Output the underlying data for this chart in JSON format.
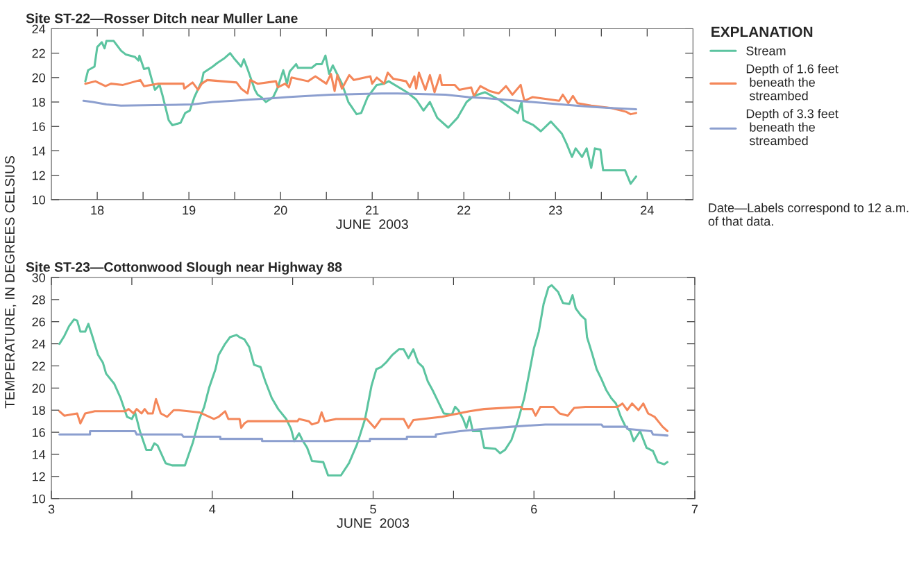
{
  "chart_data": [
    {
      "type": "line",
      "title": "Site ST-22—Rosser Ditch near Muller Lane",
      "xlabel": "JUNE  2003",
      "ylabel": "TEMPERATURE, IN DEGREES CELSIUS",
      "legend_title": "EXPLANATION",
      "legend": "right",
      "grid": false,
      "line_style": "solid",
      "xlim": [
        17.5,
        24.5
      ],
      "ylim": [
        10,
        24
      ],
      "xticks": [
        18,
        {
          "value": 18.5,
          "label": null
        },
        19,
        {
          "value": 19.5,
          "label": null
        },
        20,
        {
          "value": 20.5,
          "label": null
        },
        21,
        {
          "value": 21.5,
          "label": null
        },
        22,
        {
          "value": 22.5,
          "label": null
        },
        23,
        {
          "value": 23.5,
          "label": null
        },
        24
      ],
      "yticks": [
        10,
        12,
        14,
        16,
        18,
        20,
        22,
        24
      ],
      "annotations": [
        "Date—Labels correspond to 12 a.m. of that data."
      ],
      "series": [
        {
          "name": "Stream",
          "color": "#5cc4a0",
          "x": [
            17.87,
            17.9,
            17.97,
            18.0,
            18.05,
            18.08,
            18.1,
            18.18,
            18.26,
            18.31,
            18.41,
            18.45,
            18.46,
            18.51,
            18.56,
            18.6,
            18.63,
            18.68,
            18.71,
            18.78,
            18.82,
            18.91,
            18.96,
            19.01,
            19.06,
            19.14,
            19.16,
            19.26,
            19.31,
            19.39,
            19.45,
            19.49,
            19.57,
            19.6,
            19.64,
            19.72,
            19.75,
            19.79,
            19.84,
            19.92,
            19.97,
            20.03,
            20.07,
            20.1,
            20.17,
            20.19,
            20.34,
            20.39,
            20.45,
            20.49,
            20.53,
            20.57,
            20.67,
            20.74,
            20.83,
            20.88,
            20.95,
            21.05,
            21.13,
            21.18,
            21.38,
            21.48,
            21.56,
            21.63,
            21.71,
            21.83,
            21.93,
            22.03,
            22.11,
            22.23,
            22.38,
            22.49,
            22.59,
            22.63,
            22.65,
            22.76,
            22.84,
            22.95,
            23.07,
            23.12,
            23.18,
            23.22,
            23.29,
            23.34,
            23.39,
            23.43,
            23.49,
            23.52,
            23.76,
            23.82,
            23.88
          ],
          "values": [
            19.7,
            20.6,
            20.9,
            22.5,
            22.9,
            22.4,
            23.0,
            23.0,
            22.2,
            21.9,
            21.7,
            21.4,
            21.8,
            20.7,
            20.8,
            19.7,
            19.0,
            19.4,
            18.6,
            16.5,
            16.1,
            16.3,
            17.1,
            17.3,
            18.4,
            19.7,
            20.4,
            20.9,
            21.2,
            21.6,
            22.0,
            21.6,
            20.9,
            21.5,
            20.7,
            19.0,
            18.6,
            18.4,
            18.0,
            18.4,
            19.2,
            20.6,
            19.5,
            20.5,
            21.1,
            20.8,
            20.8,
            21.1,
            21.1,
            21.8,
            20.3,
            21.0,
            19.5,
            18.0,
            17.0,
            17.1,
            18.4,
            19.4,
            19.5,
            19.7,
            18.8,
            18.2,
            17.3,
            18.0,
            16.7,
            15.9,
            16.7,
            18.0,
            18.5,
            18.8,
            18.2,
            17.6,
            17.1,
            18.0,
            16.5,
            16.1,
            15.6,
            16.4,
            15.4,
            14.6,
            13.5,
            14.2,
            13.5,
            14.2,
            12.6,
            14.2,
            14.1,
            12.4,
            12.4,
            11.3,
            11.9
          ]
        },
        {
          "name": "Depth of 1.6 feet\n beneath the\n streambed",
          "color": "#f4875a",
          "x": [
            17.87,
            17.98,
            18.09,
            18.15,
            18.28,
            18.47,
            18.51,
            18.66,
            18.94,
            18.95,
            19.04,
            19.1,
            19.14,
            19.2,
            19.52,
            19.57,
            19.64,
            19.67,
            19.75,
            19.95,
            19.97,
            20.05,
            20.09,
            20.12,
            20.3,
            20.38,
            20.5,
            20.55,
            20.59,
            20.62,
            20.67,
            20.75,
            20.8,
            20.98,
            21.0,
            21.05,
            21.13,
            21.17,
            21.23,
            21.37,
            21.41,
            21.46,
            21.48,
            21.51,
            21.58,
            21.63,
            21.68,
            21.74,
            21.76,
            21.9,
            21.95,
            22.08,
            22.11,
            22.18,
            22.28,
            22.38,
            22.46,
            22.53,
            22.62,
            22.66,
            22.75,
            23.04,
            23.08,
            23.14,
            23.19,
            23.24,
            23.39,
            23.61,
            23.77,
            23.82,
            23.88
          ],
          "values": [
            19.5,
            19.7,
            19.3,
            19.5,
            19.4,
            19.8,
            19.3,
            19.5,
            19.5,
            19.1,
            19.6,
            19.0,
            19.5,
            19.8,
            19.6,
            19.1,
            18.7,
            19.8,
            19.5,
            19.7,
            19.2,
            19.5,
            19.2,
            20.0,
            19.7,
            20.1,
            19.5,
            20.3,
            18.9,
            20.2,
            19.1,
            20.2,
            19.8,
            20.1,
            19.5,
            20.0,
            19.5,
            20.4,
            19.9,
            19.7,
            19.2,
            20.1,
            19.1,
            20.4,
            19.0,
            20.2,
            18.8,
            20.2,
            19.4,
            19.4,
            19.0,
            19.2,
            18.5,
            19.3,
            18.9,
            18.7,
            19.3,
            18.6,
            19.4,
            18.1,
            18.4,
            18.1,
            18.6,
            17.9,
            18.5,
            17.9,
            17.7,
            17.5,
            17.2,
            17.0,
            17.1
          ]
        },
        {
          "name": "Depth of 3.3 feet\n beneath the\n streambed",
          "color": "#8c9fcf",
          "x": [
            17.85,
            17.95,
            18.1,
            18.26,
            19.04,
            19.26,
            19.49,
            19.67,
            19.9,
            20.07,
            20.3,
            20.55,
            21.1,
            21.28,
            21.8,
            22.05,
            22.26,
            22.43,
            22.74,
            23.06,
            23.39,
            23.61,
            23.88
          ],
          "values": [
            18.1,
            18.0,
            17.8,
            17.7,
            17.8,
            18.0,
            18.1,
            18.2,
            18.3,
            18.4,
            18.5,
            18.6,
            18.7,
            18.7,
            18.6,
            18.4,
            18.3,
            18.2,
            18.0,
            17.8,
            17.6,
            17.5,
            17.4
          ]
        }
      ]
    },
    {
      "type": "line",
      "title": "Site ST-23—Cottonwood Slough near Highway 88",
      "xlabel": "JUNE  2003",
      "grid": false,
      "line_style": "solid",
      "xlim": [
        3,
        7
      ],
      "ylim": [
        10,
        30
      ],
      "xticks": [
        3,
        {
          "value": 3.5,
          "label": null
        },
        4,
        {
          "value": 4.5,
          "label": null
        },
        5,
        {
          "value": 5.5,
          "label": null
        },
        6,
        {
          "value": 6.5,
          "label": null
        },
        7
      ],
      "yticks": [
        10,
        12,
        14,
        16,
        18,
        20,
        22,
        24,
        26,
        28,
        30
      ],
      "series": [
        {
          "color": "#5cc4a0",
          "x": [
            3.05,
            3.08,
            3.11,
            3.14,
            3.16,
            3.18,
            3.21,
            3.23,
            3.25,
            3.29,
            3.32,
            3.34,
            3.39,
            3.43,
            3.47,
            3.5,
            3.52,
            3.55,
            3.59,
            3.62,
            3.64,
            3.66,
            3.71,
            3.75,
            3.83,
            3.88,
            3.92,
            3.95,
            3.98,
            4.02,
            4.04,
            4.08,
            4.11,
            4.15,
            4.17,
            4.2,
            4.23,
            4.26,
            4.3,
            4.33,
            4.37,
            4.41,
            4.46,
            4.49,
            4.51,
            4.54,
            4.56,
            4.59,
            4.62,
            4.69,
            4.72,
            4.8,
            4.85,
            4.9,
            4.95,
            4.99,
            5.02,
            5.05,
            5.08,
            5.12,
            5.16,
            5.19,
            5.22,
            5.25,
            5.28,
            5.31,
            5.34,
            5.37,
            5.4,
            5.44,
            5.49,
            5.51,
            5.53,
            5.56,
            5.58,
            5.6,
            5.62,
            5.67,
            5.69,
            5.76,
            5.79,
            5.82,
            5.86,
            5.9,
            5.94,
            5.97,
            6.0,
            6.03,
            6.06,
            6.09,
            6.11,
            6.15,
            6.18,
            6.22,
            6.24,
            6.26,
            6.29,
            6.32,
            6.33,
            6.36,
            6.39,
            6.42,
            6.45,
            6.48,
            6.51,
            6.54,
            6.57,
            6.6,
            6.62,
            6.66,
            6.7,
            6.74,
            6.77,
            6.81,
            6.83
          ],
          "values": [
            24.0,
            24.7,
            25.6,
            26.2,
            26.1,
            25.1,
            25.1,
            25.8,
            24.9,
            23.0,
            22.3,
            21.3,
            20.4,
            19.1,
            17.4,
            17.2,
            17.8,
            16.1,
            14.4,
            14.4,
            15.0,
            14.8,
            13.2,
            13.0,
            13.0,
            15.1,
            17.2,
            18.3,
            20.0,
            21.7,
            23.0,
            24.0,
            24.6,
            24.8,
            24.6,
            24.4,
            23.7,
            22.1,
            21.9,
            20.6,
            19.1,
            18.1,
            17.2,
            16.3,
            15.2,
            15.9,
            15.3,
            14.6,
            13.4,
            13.3,
            12.1,
            12.1,
            13.2,
            14.9,
            17.2,
            20.2,
            21.7,
            21.9,
            22.3,
            23.0,
            23.5,
            23.5,
            22.7,
            23.5,
            22.3,
            21.9,
            20.6,
            19.8,
            18.9,
            17.7,
            17.6,
            18.3,
            18.0,
            17.2,
            16.4,
            17.4,
            16.1,
            16.1,
            14.6,
            14.5,
            14.1,
            14.4,
            15.3,
            17.0,
            19.1,
            21.3,
            23.6,
            25.1,
            27.6,
            29.1,
            29.3,
            28.7,
            27.7,
            27.6,
            28.4,
            27.2,
            26.6,
            26.2,
            24.6,
            23.2,
            21.7,
            20.8,
            19.8,
            19.1,
            18.6,
            17.4,
            16.5,
            16.1,
            15.2,
            16.1,
            14.6,
            14.3,
            13.3,
            13.1,
            13.3
          ]
        },
        {
          "color": "#f4875a",
          "x": [
            3.05,
            3.08,
            3.16,
            3.18,
            3.21,
            3.27,
            3.46,
            3.48,
            3.51,
            3.53,
            3.56,
            3.58,
            3.6,
            3.63,
            3.65,
            3.68,
            3.72,
            3.76,
            3.79,
            3.92,
            4.01,
            4.04,
            4.08,
            4.1,
            4.17,
            4.18,
            4.2,
            4.22,
            4.53,
            4.54,
            4.6,
            4.62,
            4.66,
            4.68,
            4.7,
            4.77,
            4.96,
            5.01,
            5.05,
            5.19,
            5.22,
            5.25,
            5.43,
            5.53,
            5.6,
            5.69,
            5.92,
            5.93,
            5.99,
            6.01,
            6.04,
            6.12,
            6.16,
            6.21,
            6.25,
            6.32,
            6.52,
            6.55,
            6.58,
            6.61,
            6.65,
            6.68,
            6.71,
            6.75,
            6.8,
            6.83
          ],
          "values": [
            17.9,
            17.5,
            17.7,
            16.8,
            17.7,
            17.9,
            17.9,
            18.1,
            17.7,
            18.1,
            17.7,
            18.1,
            17.7,
            17.7,
            19.0,
            17.7,
            17.4,
            18.0,
            18.0,
            17.8,
            17.2,
            17.4,
            17.9,
            17.2,
            17.2,
            16.4,
            16.8,
            17.0,
            17.0,
            17.2,
            17.0,
            16.7,
            16.9,
            17.8,
            17.0,
            17.2,
            17.2,
            16.4,
            17.2,
            17.2,
            16.4,
            17.1,
            17.4,
            17.7,
            17.9,
            18.1,
            18.3,
            18.1,
            18.1,
            17.5,
            18.3,
            18.3,
            17.7,
            17.5,
            18.2,
            18.3,
            18.3,
            18.6,
            18.0,
            18.6,
            18.0,
            18.6,
            17.7,
            17.4,
            16.5,
            16.1
          ]
        },
        {
          "color": "#8c9fcf",
          "x": [
            3.05,
            3.24,
            3.24,
            3.52,
            3.53,
            3.81,
            3.82,
            4.05,
            4.05,
            4.31,
            4.31,
            4.98,
            4.98,
            5.21,
            5.21,
            5.39,
            5.39,
            5.54,
            5.69,
            5.86,
            6.07,
            6.42,
            6.43,
            6.58,
            6.58,
            6.73,
            6.74,
            6.83
          ],
          "values": [
            15.8,
            15.8,
            16.1,
            16.1,
            15.8,
            15.8,
            15.6,
            15.6,
            15.4,
            15.4,
            15.2,
            15.2,
            15.4,
            15.4,
            15.6,
            15.6,
            15.8,
            16.1,
            16.3,
            16.5,
            16.7,
            16.7,
            16.5,
            16.5,
            16.3,
            16.1,
            15.8,
            15.7
          ]
        }
      ]
    }
  ]
}
